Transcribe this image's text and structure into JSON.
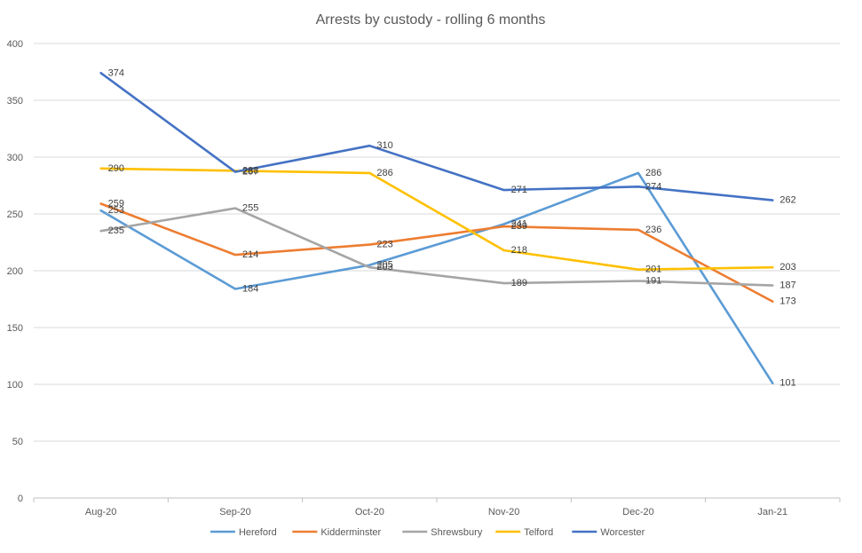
{
  "chart_data": {
    "type": "line",
    "title": "Arrests by custody - rolling 6 months",
    "categories": [
      "Aug-20",
      "Sep-20",
      "Oct-20",
      "Nov-20",
      "Dec-20",
      "Jan-21"
    ],
    "ylim": [
      0,
      400
    ],
    "yticks": [
      0,
      50,
      100,
      150,
      200,
      250,
      300,
      350,
      400
    ],
    "grid": true,
    "legend_position": "bottom",
    "data_labels": true,
    "series": [
      {
        "name": "Hereford",
        "color": "#5B9BD5",
        "values": [
          253,
          184,
          205,
          241,
          286,
          101
        ]
      },
      {
        "name": "Kidderminster",
        "color": "#ED7D31",
        "values": [
          259,
          214,
          223,
          239,
          236,
          173
        ]
      },
      {
        "name": "Shrewsbury",
        "color": "#A5A5A5",
        "values": [
          235,
          255,
          203,
          189,
          191,
          187
        ]
      },
      {
        "name": "Telford",
        "color": "#FFC000",
        "values": [
          290,
          288,
          286,
          218,
          201,
          203
        ]
      },
      {
        "name": "Worcester",
        "color": "#4472C4",
        "values": [
          374,
          287,
          310,
          271,
          274,
          262
        ]
      }
    ]
  }
}
